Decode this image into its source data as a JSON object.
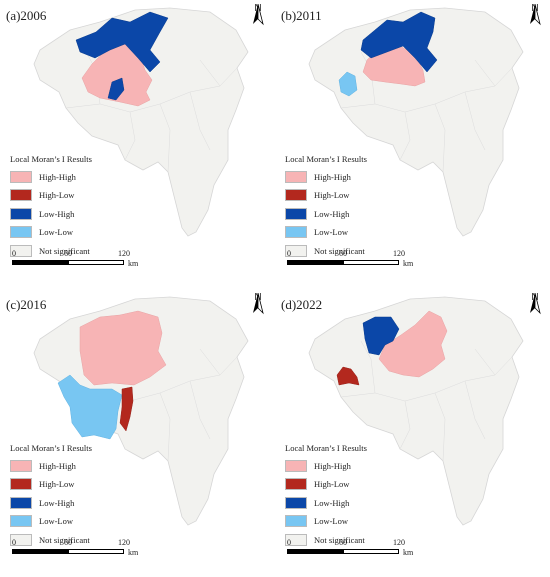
{
  "colors": {
    "high_high": "#f7b4b5",
    "high_low": "#b3281e",
    "low_high": "#0b47a8",
    "low_low": "#78c6f2",
    "not_significant": "#f2f2ef",
    "boundary": "#d6d6d6"
  },
  "legend": {
    "title": "Local Moran’s I Results",
    "items": [
      {
        "label": "High-High",
        "color": "#f7b4b5"
      },
      {
        "label": "High-Low",
        "color": "#b3281e"
      },
      {
        "label": "Low-High",
        "color": "#0b47a8"
      },
      {
        "label": "Low-Low",
        "color": "#78c6f2"
      },
      {
        "label": "Not significant",
        "color": "#f2f2ef"
      }
    ]
  },
  "north_arrow": {
    "label": "N"
  },
  "scale_bar": {
    "ticks": [
      "0",
      "60",
      "120"
    ],
    "unit": "km"
  },
  "panels": [
    {
      "title": "(a)2006",
      "year": "2006",
      "classified_regions": {
        "high_high": [
          "central-south cluster",
          "southern strip"
        ],
        "low_high": [
          "northern belt",
          "south-central unit"
        ],
        "low_low": [],
        "high_low": []
      }
    },
    {
      "title": "(b)2011",
      "year": "2011",
      "classified_regions": {
        "high_high": [
          "central-south cluster"
        ],
        "low_high": [
          "northern belt"
        ],
        "low_low": [
          "western unit"
        ],
        "high_low": []
      }
    },
    {
      "title": "(c)2016",
      "year": "2016",
      "classified_regions": {
        "high_high": [
          "northern and central cluster"
        ],
        "low_high": [],
        "low_low": [
          "south-western cluster"
        ],
        "high_low": [
          "south-central unit"
        ]
      }
    },
    {
      "title": "(d)2022",
      "year": "2022",
      "classified_regions": {
        "high_high": [
          "northern and central cluster"
        ],
        "low_high": [
          "north-western unit"
        ],
        "low_low": [],
        "high_low": [
          "western unit"
        ]
      }
    }
  ]
}
